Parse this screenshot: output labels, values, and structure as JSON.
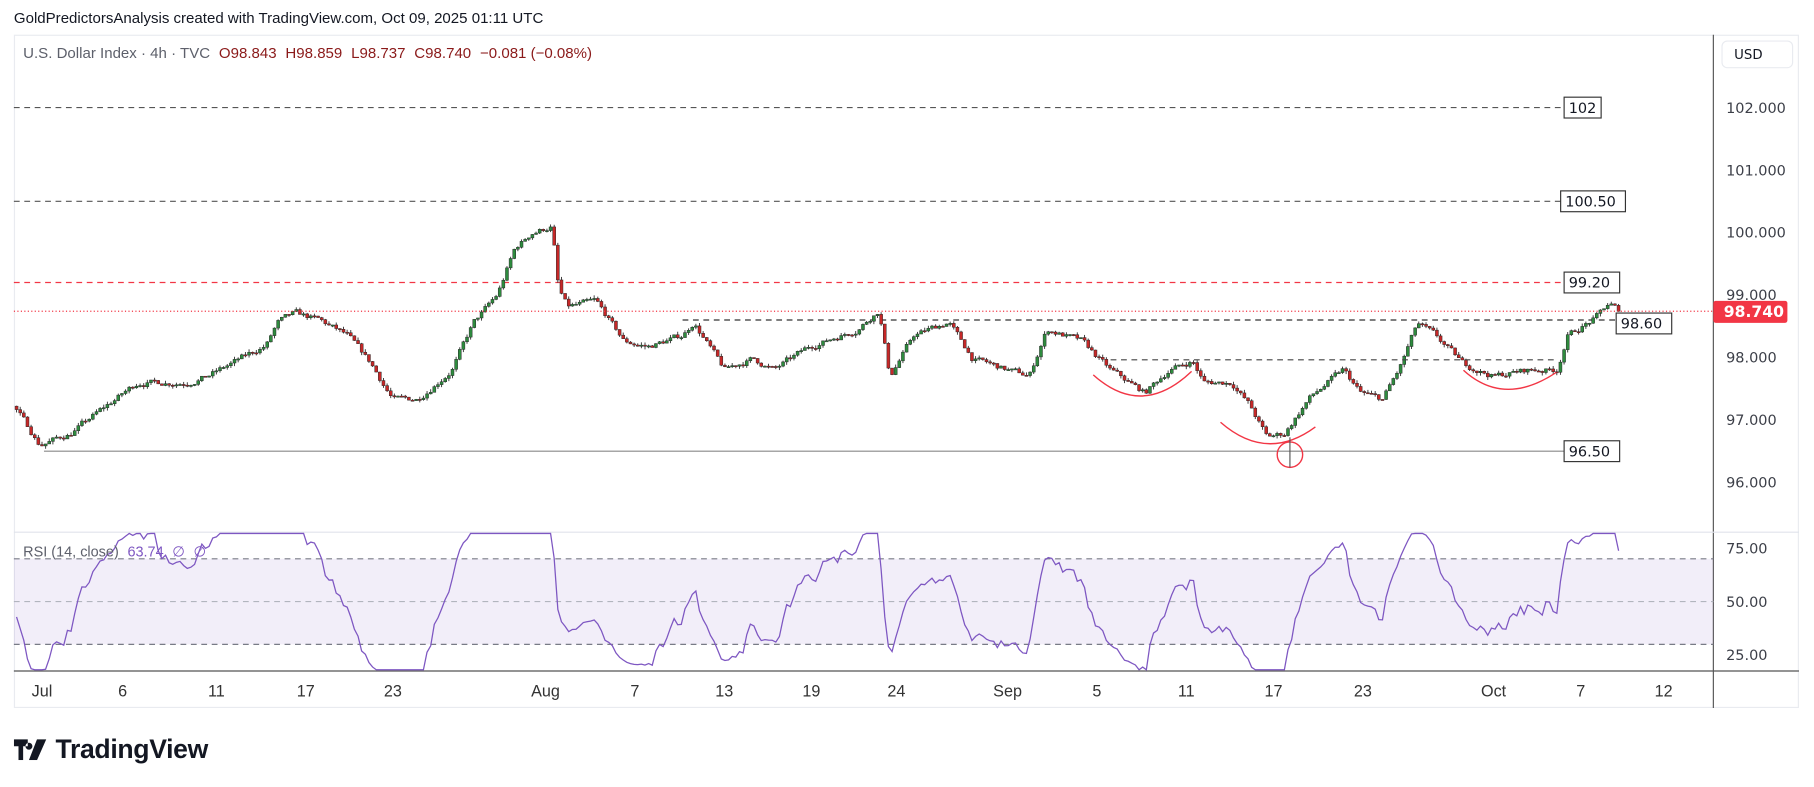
{
  "header": {
    "attribution": "GoldPredictorsAnalysis created with TradingView.com, Oct 09, 2025 01:11 UTC"
  },
  "legend": {
    "symbol": "U.S. Dollar Index · 4h · TVC",
    "open": "O98.843",
    "high": "H98.859",
    "low": "L98.737",
    "close": "C98.740",
    "change": "−0.081 (−0.08%)"
  },
  "rsi_legend": {
    "name": "RSI (14, close)",
    "value": "63.74",
    "extra1": "∅",
    "extra2": "∅"
  },
  "currency": "USD",
  "current_price": {
    "label": "98.740",
    "value": 98.74,
    "color": "#f23645"
  },
  "brand": "TradingView",
  "colors": {
    "up": "#2e8b3e",
    "down": "#c62828",
    "rsi": "#7e57c2",
    "annotation": "#f23645"
  },
  "chart_data": {
    "type": "candlestick",
    "title": "U.S. Dollar Index · 4h · TVC",
    "bars_per_day": 6,
    "price_ticks": [
      "102.000",
      "101.000",
      "100.000",
      "99.000",
      "98.000",
      "97.000",
      "96.000"
    ],
    "price_tick_values": [
      102,
      101,
      100,
      99,
      98,
      97,
      96
    ],
    "price_range": [
      95.3,
      103.1
    ],
    "time_labels": [
      {
        "label": "Jul",
        "day": 0
      },
      {
        "label": "6",
        "day": 3.7
      },
      {
        "label": "11",
        "day": 8
      },
      {
        "label": "17",
        "day": 12.1
      },
      {
        "label": "23",
        "day": 16.1
      },
      {
        "label": "Aug",
        "day": 23.1
      },
      {
        "label": "7",
        "day": 27.2
      },
      {
        "label": "13",
        "day": 31.3
      },
      {
        "label": "19",
        "day": 35.3
      },
      {
        "label": "24",
        "day": 39.2
      },
      {
        "label": "Sep",
        "day": 44.3
      },
      {
        "label": "5",
        "day": 48.4
      },
      {
        "label": "11",
        "day": 52.5
      },
      {
        "label": "17",
        "day": 56.5
      },
      {
        "label": "23",
        "day": 60.6
      },
      {
        "label": "Oct",
        "day": 66.6
      },
      {
        "label": "7",
        "day": 70.6
      },
      {
        "label": "12",
        "day": 74.4
      }
    ],
    "close_path": [
      [
        -1.3,
        97.24
      ],
      [
        -0.1,
        96.6
      ],
      [
        1.3,
        96.78
      ],
      [
        2.3,
        97.05
      ],
      [
        4.4,
        97.6
      ],
      [
        6.6,
        97.6
      ],
      [
        7.6,
        97.7
      ],
      [
        8.7,
        97.9
      ],
      [
        10.3,
        98.2
      ],
      [
        10.8,
        98.55
      ],
      [
        11.6,
        98.7
      ],
      [
        12.7,
        98.6
      ],
      [
        14.0,
        98.35
      ],
      [
        15.1,
        97.9
      ],
      [
        16.1,
        97.33
      ],
      [
        17.2,
        97.33
      ],
      [
        18.8,
        97.8
      ],
      [
        19.8,
        98.55
      ],
      [
        20.9,
        99.0
      ],
      [
        21.7,
        99.74
      ],
      [
        22.5,
        100.0
      ],
      [
        23.4,
        100.1
      ],
      [
        23.7,
        99.1
      ],
      [
        24.1,
        98.8
      ],
      [
        25.4,
        98.9
      ],
      [
        26.7,
        98.26
      ],
      [
        27.8,
        98.17
      ],
      [
        29.4,
        98.35
      ],
      [
        29.9,
        98.57
      ],
      [
        31.3,
        97.8
      ],
      [
        32.6,
        97.98
      ],
      [
        33.6,
        97.8
      ],
      [
        35.2,
        98.17
      ],
      [
        37.4,
        98.45
      ],
      [
        38.4,
        98.76
      ],
      [
        38.9,
        97.7
      ],
      [
        40.0,
        98.35
      ],
      [
        41.6,
        98.57
      ],
      [
        42.7,
        97.98
      ],
      [
        44.3,
        97.8
      ],
      [
        45.3,
        97.7
      ],
      [
        46.1,
        98.45
      ],
      [
        47.7,
        98.26
      ],
      [
        49.0,
        97.8
      ],
      [
        50.6,
        97.43
      ],
      [
        51.7,
        97.8
      ],
      [
        52.8,
        97.94
      ],
      [
        53.3,
        97.6
      ],
      [
        54.6,
        97.6
      ],
      [
        55.4,
        97.24
      ],
      [
        56.2,
        96.72
      ],
      [
        57.0,
        96.78
      ],
      [
        58.1,
        97.33
      ],
      [
        59.7,
        97.8
      ],
      [
        60.5,
        97.43
      ],
      [
        61.5,
        97.33
      ],
      [
        62.3,
        97.83
      ],
      [
        63.1,
        98.54
      ],
      [
        63.9,
        98.35
      ],
      [
        65.2,
        97.9
      ],
      [
        66.6,
        97.7
      ],
      [
        68.2,
        97.8
      ],
      [
        69.5,
        97.8
      ],
      [
        70.0,
        98.35
      ],
      [
        71.3,
        98.63
      ],
      [
        71.9,
        98.87
      ],
      [
        72.4,
        98.74
      ]
    ],
    "levels": [
      {
        "label": "102",
        "price": 102.0,
        "style": "dashed",
        "color": "#555555"
      },
      {
        "label": "100.50",
        "price": 100.5,
        "style": "dashed",
        "color": "#555555"
      },
      {
        "label": "99.20",
        "price": 99.2,
        "style": "dashed",
        "color": "#f23645"
      },
      {
        "label": "98.60",
        "price": 98.6,
        "style": "dashed",
        "color": "#333333"
      },
      {
        "label": "96.50",
        "price": 96.5,
        "style": "solid",
        "color": "#888888"
      }
    ],
    "rsi": {
      "period": 14,
      "ticks": [
        "75.00",
        "50.00",
        "25.00"
      ],
      "tick_values": [
        75,
        50,
        25
      ],
      "band": [
        30,
        70
      ],
      "last": 63.74
    }
  }
}
